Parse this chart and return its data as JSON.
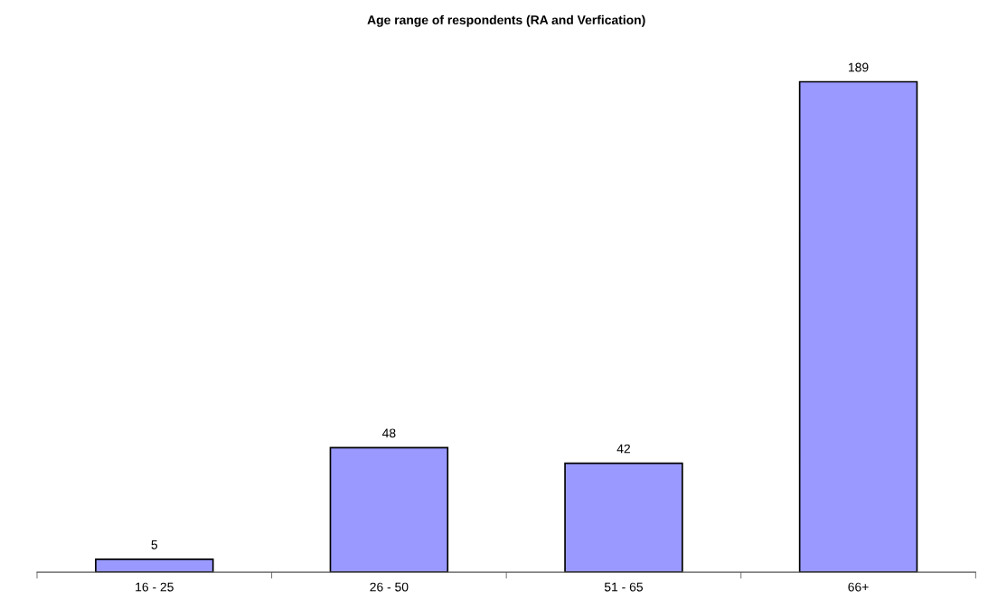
{
  "chart_data": {
    "type": "bar",
    "title": "Age range of respondents (RA and Verfication)",
    "categories": [
      "16 - 25",
      "26 - 50",
      "51 - 65",
      "66+"
    ],
    "values": [
      5,
      48,
      42,
      189
    ],
    "color": "#9999ff",
    "data_labels": true,
    "grid": false,
    "legend": false
  }
}
